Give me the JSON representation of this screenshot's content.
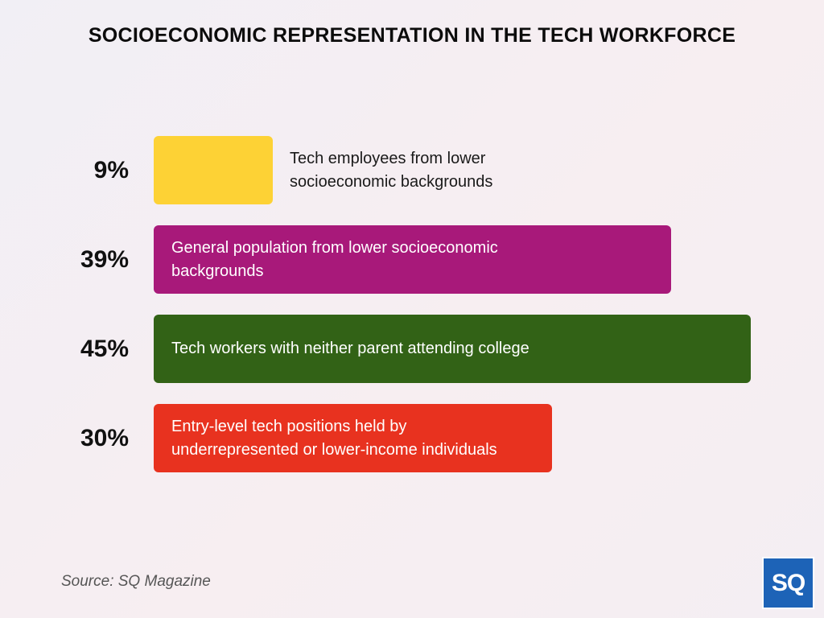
{
  "title": "SOCIOECONOMIC REPRESENTATION IN THE TECH WORKFORCE",
  "source": "Source: SQ Magazine",
  "logo_text": "SQ",
  "chart_data": {
    "type": "bar",
    "orientation": "horizontal",
    "title": "SOCIOECONOMIC REPRESENTATION IN THE TECH WORKFORCE",
    "xlim": [
      0,
      45
    ],
    "grid": false,
    "categories": [
      "Tech employees from lower socioeconomic backgrounds",
      "General population from lower socioeconomic backgrounds",
      "Tech workers with neither parent attending college",
      "Entry-level tech positions held by underrepresented or lower-income individuals"
    ],
    "values": [
      9,
      39,
      45,
      30
    ],
    "value_labels": [
      "9%",
      "39%",
      "45%",
      "30%"
    ],
    "colors": [
      "#fdd235",
      "#a8197a",
      "#326216",
      "#e8321f"
    ],
    "label_colors": [
      "#1a1a1a",
      "#ffffff",
      "#ffffff",
      "#ffffff"
    ]
  }
}
